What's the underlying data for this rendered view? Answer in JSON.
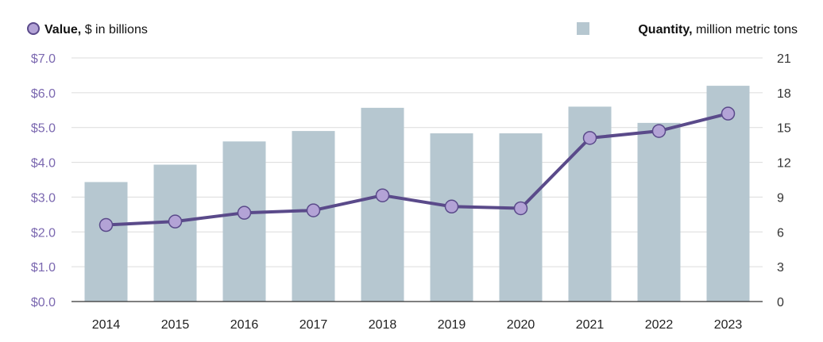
{
  "chart_data": {
    "type": "bar",
    "combo": "bar + line, dual y-axis",
    "categories": [
      "2014",
      "2015",
      "2016",
      "2017",
      "2018",
      "2019",
      "2020",
      "2021",
      "2022",
      "2023"
    ],
    "series": [
      {
        "name": "Quantity",
        "legend_bold": "Quantity,",
        "legend_rest": " million metric tons",
        "type": "bar",
        "axis": "right",
        "color": "#b6c7d0",
        "values": [
          10.3,
          11.8,
          13.8,
          14.7,
          16.7,
          14.5,
          14.5,
          16.8,
          15.4,
          18.6
        ]
      },
      {
        "name": "Value",
        "legend_bold": "Value,",
        "legend_rest": " $ in billions",
        "type": "line",
        "axis": "left",
        "color": "#5a4a8a",
        "marker_fill": "#b3a3d6",
        "values": [
          2.2,
          2.3,
          2.55,
          2.62,
          3.05,
          2.73,
          2.68,
          4.7,
          4.9,
          5.4
        ]
      }
    ],
    "y_left": {
      "ylim": [
        0,
        7
      ],
      "ticks": [
        0,
        1,
        2,
        3,
        4,
        5,
        6,
        7
      ],
      "tick_labels": [
        "$0.0",
        "$1.0",
        "$2.0",
        "$3.0",
        "$4.0",
        "$5.0",
        "$6.0",
        "$7.0"
      ],
      "color": "#7b68b0"
    },
    "y_right": {
      "ylim": [
        0,
        21
      ],
      "ticks": [
        0,
        3,
        6,
        9,
        12,
        15,
        18,
        21
      ],
      "tick_labels": [
        "0",
        "3",
        "6",
        "9",
        "12",
        "15",
        "18",
        "21"
      ]
    },
    "grid": true,
    "legend": [
      "top-left",
      "top-right"
    ]
  }
}
